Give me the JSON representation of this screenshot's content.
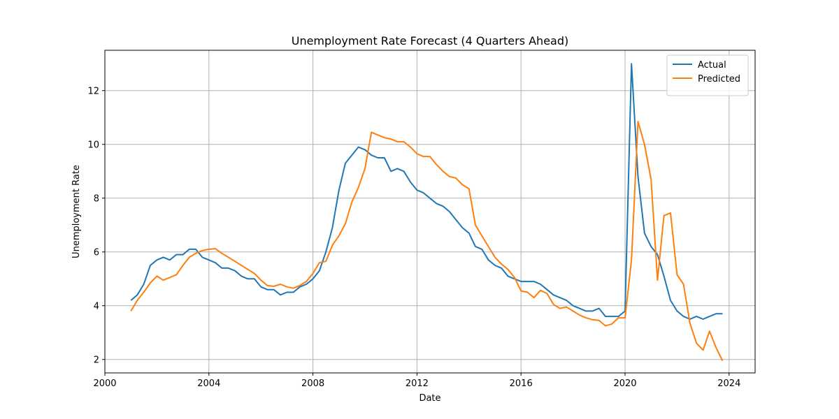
{
  "chart_data": {
    "type": "line",
    "title": "Unemployment Rate Forecast (4 Quarters Ahead)",
    "xlabel": "Date",
    "ylabel": "Unemployment Rate",
    "xlim": [
      "2000-01-01",
      "2025-01-01"
    ],
    "ylim": [
      1.5,
      13.5
    ],
    "xticks": [
      "2000",
      "2004",
      "2008",
      "2012",
      "2016",
      "2020",
      "2024"
    ],
    "yticks": [
      2,
      4,
      6,
      8,
      10,
      12
    ],
    "grid": true,
    "legend_position": "top-right",
    "x": [
      "2001-01-01",
      "2001-04-01",
      "2001-07-01",
      "2001-10-01",
      "2002-01-01",
      "2002-04-01",
      "2002-07-01",
      "2002-10-01",
      "2003-01-01",
      "2003-04-01",
      "2003-07-01",
      "2003-10-01",
      "2004-01-01",
      "2004-04-01",
      "2004-07-01",
      "2004-10-01",
      "2005-01-01",
      "2005-04-01",
      "2005-07-01",
      "2005-10-01",
      "2006-01-01",
      "2006-04-01",
      "2006-07-01",
      "2006-10-01",
      "2007-01-01",
      "2007-04-01",
      "2007-07-01",
      "2007-10-01",
      "2008-01-01",
      "2008-04-01",
      "2008-07-01",
      "2008-10-01",
      "2009-01-01",
      "2009-04-01",
      "2009-07-01",
      "2009-10-01",
      "2010-01-01",
      "2010-04-01",
      "2010-07-01",
      "2010-10-01",
      "2011-01-01",
      "2011-04-01",
      "2011-07-01",
      "2011-10-01",
      "2012-01-01",
      "2012-04-01",
      "2012-07-01",
      "2012-10-01",
      "2013-01-01",
      "2013-04-01",
      "2013-07-01",
      "2013-10-01",
      "2014-01-01",
      "2014-04-01",
      "2014-07-01",
      "2014-10-01",
      "2015-01-01",
      "2015-04-01",
      "2015-07-01",
      "2015-10-01",
      "2016-01-01",
      "2016-04-01",
      "2016-07-01",
      "2016-10-01",
      "2017-01-01",
      "2017-04-01",
      "2017-07-01",
      "2017-10-01",
      "2018-01-01",
      "2018-04-01",
      "2018-07-01",
      "2018-10-01",
      "2019-01-01",
      "2019-04-01",
      "2019-07-01",
      "2019-10-01",
      "2020-01-01",
      "2020-04-01",
      "2020-07-01",
      "2020-10-01",
      "2021-01-01",
      "2021-04-01",
      "2021-07-01",
      "2021-10-01",
      "2022-01-01",
      "2022-04-01",
      "2022-07-01",
      "2022-10-01",
      "2023-01-01",
      "2023-04-01",
      "2023-07-01",
      "2023-10-01"
    ],
    "series": [
      {
        "name": "Actual",
        "color": "#1f77b4",
        "values": [
          4.2,
          4.4,
          4.8,
          5.5,
          5.7,
          5.8,
          5.7,
          5.9,
          5.9,
          6.1,
          6.1,
          5.8,
          5.7,
          5.6,
          5.4,
          5.4,
          5.3,
          5.1,
          5.0,
          5.0,
          4.7,
          4.6,
          4.6,
          4.4,
          4.5,
          4.5,
          4.7,
          4.8,
          5.0,
          5.3,
          6.0,
          6.9,
          8.3,
          9.3,
          9.6,
          9.9,
          9.8,
          9.6,
          9.5,
          9.5,
          9.0,
          9.1,
          9.0,
          8.6,
          8.3,
          8.2,
          8.0,
          7.8,
          7.7,
          7.5,
          7.2,
          6.9,
          6.7,
          6.2,
          6.1,
          5.7,
          5.5,
          5.4,
          5.1,
          5.0,
          4.9,
          4.9,
          4.9,
          4.8,
          4.6,
          4.4,
          4.3,
          4.2,
          4.0,
          3.9,
          3.8,
          3.8,
          3.9,
          3.6,
          3.6,
          3.6,
          3.8,
          13.0,
          8.8,
          6.7,
          6.2,
          5.9,
          5.1,
          4.2,
          3.8,
          3.6,
          3.5,
          3.6,
          3.5,
          3.6,
          3.7,
          3.7
        ]
      },
      {
        "name": "Predicted",
        "color": "#ff7f0e",
        "values": [
          3.8,
          4.2,
          4.5,
          4.85,
          5.1,
          4.95,
          5.05,
          5.15,
          5.5,
          5.8,
          5.95,
          6.05,
          6.1,
          6.12,
          5.95,
          5.8,
          5.65,
          5.5,
          5.35,
          5.2,
          4.95,
          4.75,
          4.72,
          4.8,
          4.7,
          4.65,
          4.75,
          4.9,
          5.2,
          5.6,
          5.65,
          6.25,
          6.6,
          7.05,
          7.85,
          8.4,
          9.1,
          10.45,
          10.35,
          10.25,
          10.2,
          10.1,
          10.1,
          9.9,
          9.65,
          9.55,
          9.55,
          9.25,
          9.0,
          8.8,
          8.75,
          8.5,
          8.35,
          7.0,
          6.6,
          6.2,
          5.8,
          5.55,
          5.35,
          5.05,
          4.55,
          4.5,
          4.3,
          4.57,
          4.45,
          4.05,
          3.9,
          3.95,
          3.8,
          3.65,
          3.55,
          3.48,
          3.45,
          3.25,
          3.32,
          3.55,
          3.55,
          5.7,
          10.85,
          10.0,
          8.7,
          4.95,
          7.35,
          7.45,
          5.15,
          4.8,
          3.35,
          2.6,
          2.35,
          3.05,
          2.45,
          1.95
        ]
      }
    ]
  }
}
